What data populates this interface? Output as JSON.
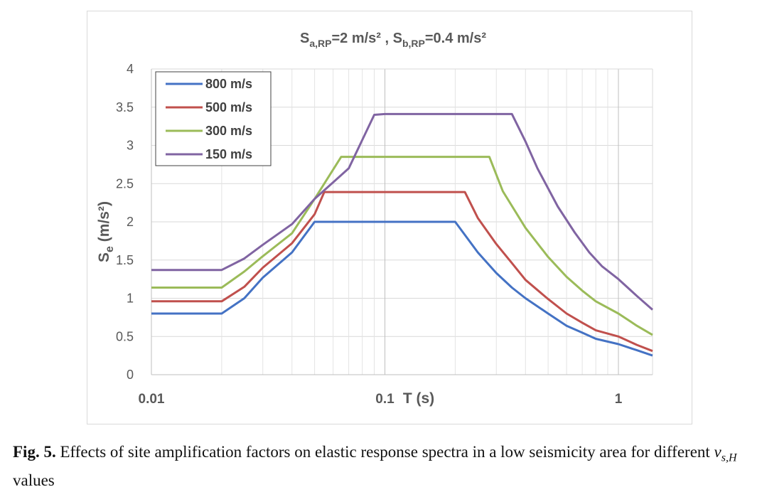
{
  "caption": {
    "label": "Fig. 5.",
    "text_before": "Effects of site amplification factors on elastic response spectra in a low seismicity area for different",
    "var_main": "v",
    "var_sub": "s,H",
    "text_after": "values"
  },
  "chart_data": {
    "type": "line",
    "title": {
      "a_main": "S",
      "a_sub": "a,RP",
      "a_rest": "=2 m/s² , ",
      "b_main": "S",
      "b_sub": "b,RP",
      "b_rest": "=0.4 m/s²"
    },
    "xlabel": "T (s)",
    "ylabel": {
      "main": "S",
      "sub": "e",
      "rest": " (m/s²)"
    },
    "x_scale": "log",
    "xlim": [
      0.01,
      1.4
    ],
    "ylim": [
      0,
      4
    ],
    "x_ticks": [
      {
        "value": 0.01,
        "label": "0.01"
      },
      {
        "value": 0.1,
        "label": "0.1"
      },
      {
        "value": 1,
        "label": "1"
      }
    ],
    "y_ticks": [
      {
        "value": 0,
        "label": "0"
      },
      {
        "value": 0.5,
        "label": "0.5"
      },
      {
        "value": 1,
        "label": "1"
      },
      {
        "value": 1.5,
        "label": "1.5"
      },
      {
        "value": 2,
        "label": "2"
      },
      {
        "value": 2.5,
        "label": "2.5"
      },
      {
        "value": 3,
        "label": "3"
      },
      {
        "value": 3.5,
        "label": "3.5"
      },
      {
        "value": 4,
        "label": "4"
      }
    ],
    "grid": true,
    "legend_position": "top-left",
    "series": [
      {
        "name": "800 m/s",
        "color": "#4472c4",
        "points": [
          [
            0.01,
            0.8
          ],
          [
            0.02,
            0.8
          ],
          [
            0.025,
            1.0
          ],
          [
            0.03,
            1.27
          ],
          [
            0.04,
            1.6
          ],
          [
            0.05,
            2.0
          ],
          [
            0.2,
            2.0
          ],
          [
            0.25,
            1.6
          ],
          [
            0.3,
            1.33
          ],
          [
            0.35,
            1.14
          ],
          [
            0.4,
            1.0
          ],
          [
            0.5,
            0.8
          ],
          [
            0.6,
            0.64
          ],
          [
            0.7,
            0.55
          ],
          [
            0.8,
            0.47
          ],
          [
            1.0,
            0.4
          ],
          [
            1.2,
            0.32
          ],
          [
            1.4,
            0.25
          ]
        ]
      },
      {
        "name": "500 m/s",
        "color": "#c0504d",
        "points": [
          [
            0.01,
            0.96
          ],
          [
            0.02,
            0.96
          ],
          [
            0.025,
            1.15
          ],
          [
            0.03,
            1.4
          ],
          [
            0.04,
            1.72
          ],
          [
            0.05,
            2.1
          ],
          [
            0.055,
            2.39
          ],
          [
            0.22,
            2.39
          ],
          [
            0.25,
            2.05
          ],
          [
            0.3,
            1.71
          ],
          [
            0.35,
            1.46
          ],
          [
            0.4,
            1.24
          ],
          [
            0.5,
            0.99
          ],
          [
            0.6,
            0.8
          ],
          [
            0.7,
            0.68
          ],
          [
            0.8,
            0.58
          ],
          [
            1.0,
            0.5
          ],
          [
            1.2,
            0.39
          ],
          [
            1.4,
            0.31
          ]
        ]
      },
      {
        "name": "300 m/s",
        "color": "#9bbb59",
        "points": [
          [
            0.01,
            1.14
          ],
          [
            0.02,
            1.14
          ],
          [
            0.025,
            1.35
          ],
          [
            0.03,
            1.55
          ],
          [
            0.04,
            1.85
          ],
          [
            0.05,
            2.3
          ],
          [
            0.065,
            2.85
          ],
          [
            0.28,
            2.85
          ],
          [
            0.32,
            2.4
          ],
          [
            0.4,
            1.92
          ],
          [
            0.5,
            1.54
          ],
          [
            0.6,
            1.28
          ],
          [
            0.7,
            1.1
          ],
          [
            0.8,
            0.96
          ],
          [
            1.0,
            0.8
          ],
          [
            1.2,
            0.64
          ],
          [
            1.4,
            0.52
          ]
        ]
      },
      {
        "name": "150 m/s",
        "color": "#8064a2",
        "points": [
          [
            0.01,
            1.37
          ],
          [
            0.02,
            1.37
          ],
          [
            0.025,
            1.52
          ],
          [
            0.03,
            1.7
          ],
          [
            0.04,
            1.97
          ],
          [
            0.05,
            2.3
          ],
          [
            0.07,
            2.7
          ],
          [
            0.09,
            3.4
          ],
          [
            0.1,
            3.41
          ],
          [
            0.35,
            3.41
          ],
          [
            0.4,
            3.05
          ],
          [
            0.45,
            2.7
          ],
          [
            0.55,
            2.2
          ],
          [
            0.65,
            1.86
          ],
          [
            0.75,
            1.6
          ],
          [
            0.85,
            1.42
          ],
          [
            1.0,
            1.25
          ],
          [
            1.2,
            1.03
          ],
          [
            1.4,
            0.85
          ]
        ]
      }
    ]
  }
}
